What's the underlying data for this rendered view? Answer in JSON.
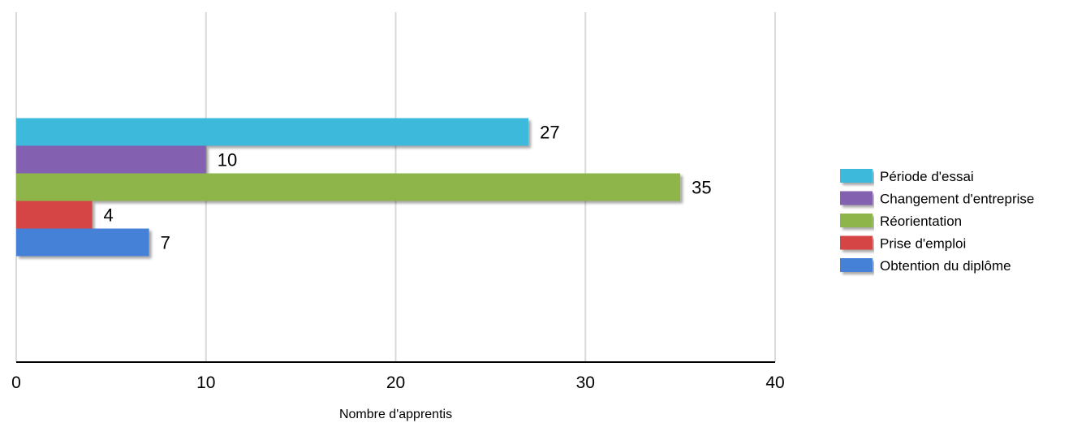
{
  "chart_data": {
    "type": "bar",
    "orientation": "horizontal",
    "xlabel": "Nombre d'apprentis",
    "xlim": [
      0,
      40
    ],
    "xticks": [
      0,
      10,
      20,
      30,
      40
    ],
    "grid": true,
    "legend_position": "right",
    "series": [
      {
        "name": "Période d'essai",
        "value": 27,
        "color": "#3eb9dc"
      },
      {
        "name": "Changement d'entreprise",
        "value": 10,
        "color": "#8460b0"
      },
      {
        "name": "Réorientation",
        "value": 35,
        "color": "#8db54a"
      },
      {
        "name": "Prise d'emploi",
        "value": 4,
        "color": "#d64444"
      },
      {
        "name": "Obtention du diplôme",
        "value": 7,
        "color": "#4481d6"
      }
    ]
  }
}
